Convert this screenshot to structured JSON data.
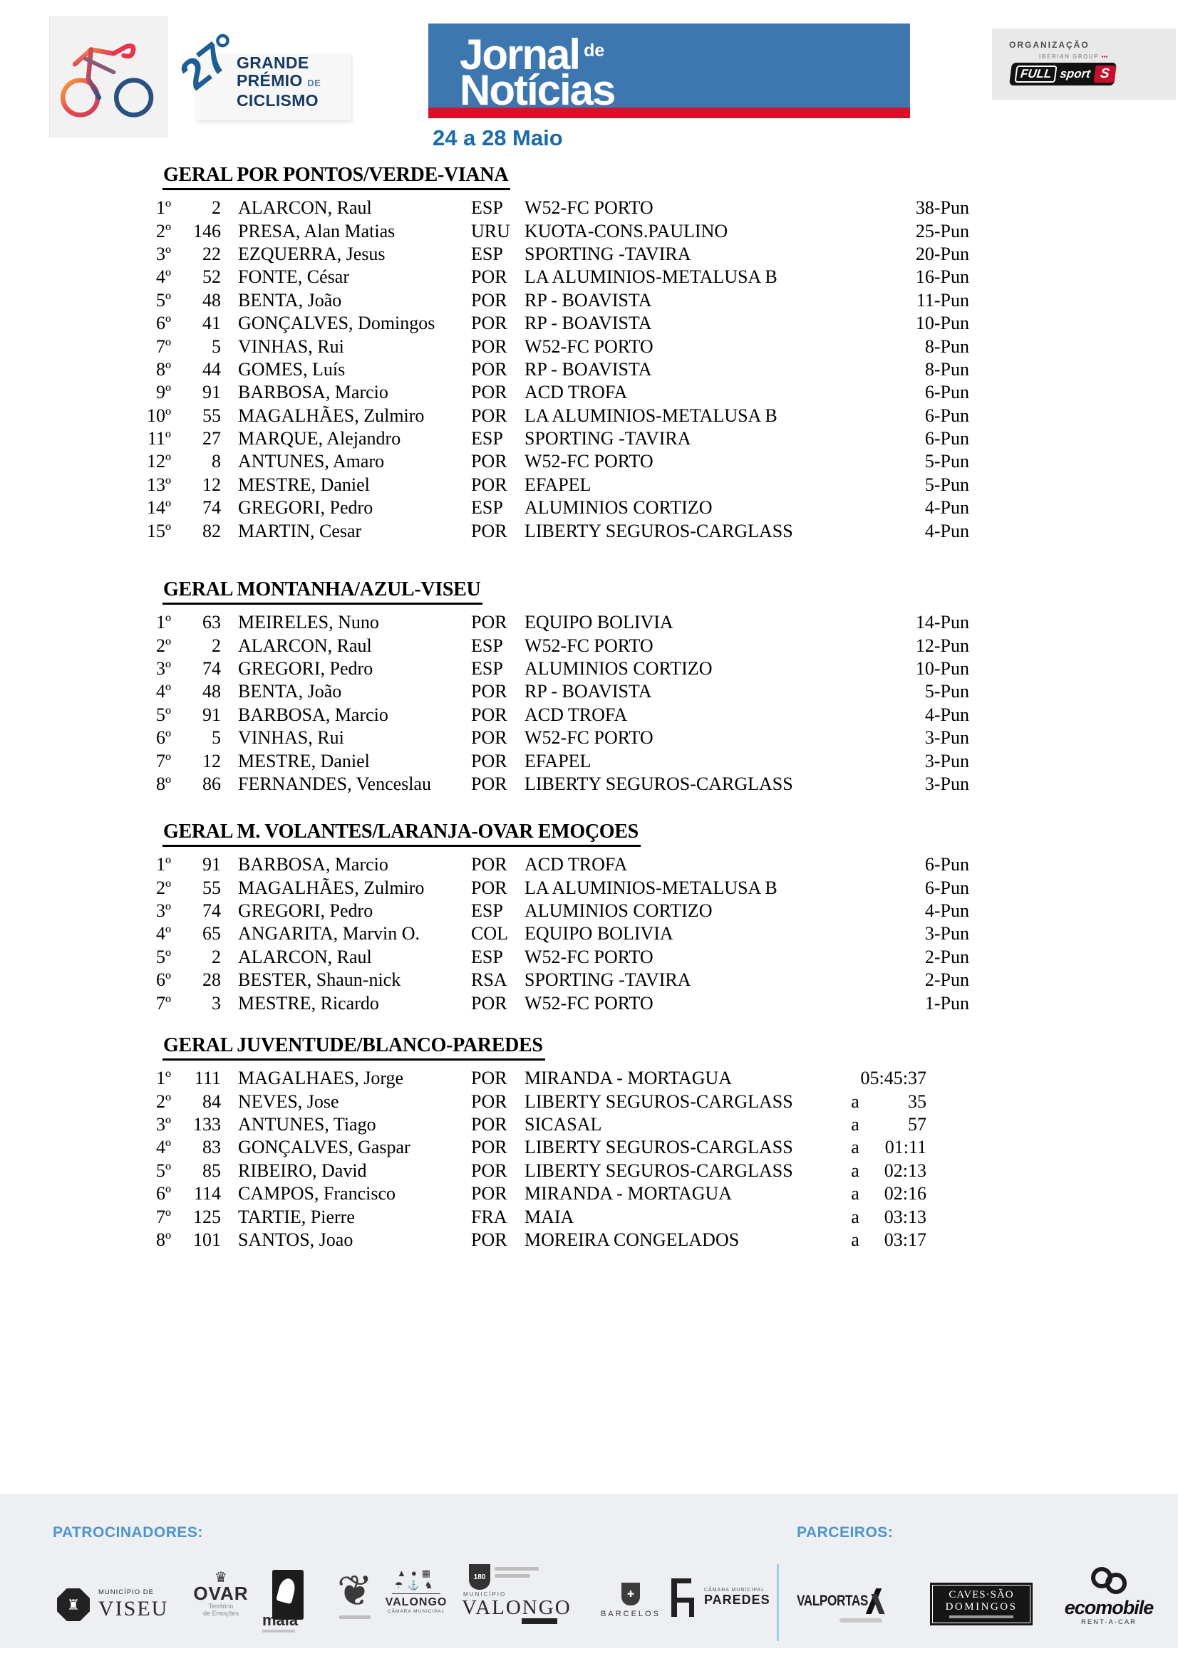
{
  "header": {
    "edition": {
      "number": "27°",
      "l1": "GRANDE",
      "l2": "PRÉMIO",
      "l2b": "DE",
      "l3": "CICLISMO"
    },
    "newspaper": {
      "w1": "Jornal",
      "de": "de",
      "w2": "Notícias"
    },
    "dates": "24 a 28 Maio",
    "organization": {
      "label": "ORGANIZAÇÃO",
      "group": "IBERIAN GROUP",
      "marks": "▪▪▪",
      "full": "FULL",
      "sport": "sport",
      "s": "S"
    }
  },
  "colors": {
    "newspaper_blue": "#3e77af",
    "newspaper_red": "#d8112b",
    "date_blue": "#1a6ba8",
    "edition_blue": "#1d5e95",
    "edition_navy": "#173a63",
    "footer_label_blue": "#4e95cc",
    "fullsport_red": "#c8102e"
  },
  "sections": [
    {
      "title": "GERAL POR PONTOS/VERDE-VIANA",
      "layout": "points",
      "rows": [
        [
          "1º",
          "2",
          "ALARCON, Raul",
          "ESP",
          "W52-FC PORTO",
          "38-Pun"
        ],
        [
          "2º",
          "146",
          "PRESA, Alan Matias",
          "URU",
          "KUOTA-CONS.PAULINO",
          "25-Pun"
        ],
        [
          "3º",
          "22",
          "EZQUERRA, Jesus",
          "ESP",
          "SPORTING -TAVIRA",
          "20-Pun"
        ],
        [
          "4º",
          "52",
          "FONTE, César",
          "POR",
          "LA ALUMINIOS-METALUSA B",
          "16-Pun"
        ],
        [
          "5º",
          "48",
          "BENTA, João",
          "POR",
          "RP - BOAVISTA",
          "11-Pun"
        ],
        [
          "6º",
          "41",
          "GONÇALVES, Domingos",
          "POR",
          "RP - BOAVISTA",
          "10-Pun"
        ],
        [
          "7º",
          "5",
          "VINHAS, Rui",
          "POR",
          "W52-FC PORTO",
          "8-Pun"
        ],
        [
          "8º",
          "44",
          "GOMES, Luís",
          "POR",
          "RP - BOAVISTA",
          "8-Pun"
        ],
        [
          "9º",
          "91",
          "BARBOSA, Marcio",
          "POR",
          "ACD TROFA",
          "6-Pun"
        ],
        [
          "10º",
          "55",
          "MAGALHÃES, Zulmiro",
          "POR",
          "LA ALUMINIOS-METALUSA B",
          "6-Pun"
        ],
        [
          "11º",
          "27",
          "MARQUE, Alejandro",
          "ESP",
          "SPORTING -TAVIRA",
          "6-Pun"
        ],
        [
          "12º",
          "8",
          "ANTUNES, Amaro",
          "POR",
          "W52-FC PORTO",
          "5-Pun"
        ],
        [
          "13º",
          "12",
          "MESTRE, Daniel",
          "POR",
          "EFAPEL",
          "5-Pun"
        ],
        [
          "14º",
          "74",
          "GREGORI, Pedro",
          "ESP",
          "ALUMINIOS CORTIZO",
          "4-Pun"
        ],
        [
          "15º",
          "82",
          "MARTIN, Cesar",
          "POR",
          "LIBERTY SEGUROS-CARGLASS",
          "4-Pun"
        ]
      ]
    },
    {
      "title": "GERAL MONTANHA/AZUL-VISEU",
      "layout": "points",
      "rows": [
        [
          "1º",
          "63",
          "MEIRELES, Nuno",
          "POR",
          "EQUIPO BOLIVIA",
          "14-Pun"
        ],
        [
          "2º",
          "2",
          "ALARCON, Raul",
          "ESP",
          "W52-FC PORTO",
          "12-Pun"
        ],
        [
          "3º",
          "74",
          "GREGORI, Pedro",
          "ESP",
          "ALUMINIOS CORTIZO",
          "10-Pun"
        ],
        [
          "4º",
          "48",
          "BENTA, João",
          "POR",
          "RP - BOAVISTA",
          "5-Pun"
        ],
        [
          "5º",
          "91",
          "BARBOSA, Marcio",
          "POR",
          "ACD TROFA",
          "4-Pun"
        ],
        [
          "6º",
          "5",
          "VINHAS, Rui",
          "POR",
          "W52-FC PORTO",
          "3-Pun"
        ],
        [
          "7º",
          "12",
          "MESTRE, Daniel",
          "POR",
          "EFAPEL",
          "3-Pun"
        ],
        [
          "8º",
          "86",
          "FERNANDES, Venceslau",
          "POR",
          "LIBERTY SEGUROS-CARGLASS",
          "3-Pun"
        ]
      ]
    },
    {
      "title": "GERAL M. VOLANTES/LARANJA-OVAR EMOÇOES",
      "layout": "points",
      "rows": [
        [
          "1º",
          "91",
          "BARBOSA, Marcio",
          "POR",
          "ACD TROFA",
          "6-Pun"
        ],
        [
          "2º",
          "55",
          "MAGALHÃES, Zulmiro",
          "POR",
          "LA ALUMINIOS-METALUSA B",
          "6-Pun"
        ],
        [
          "3º",
          "74",
          "GREGORI, Pedro",
          "ESP",
          "ALUMINIOS CORTIZO",
          "4-Pun"
        ],
        [
          "4º",
          "65",
          "ANGARITA, Marvin O.",
          "COL",
          "EQUIPO BOLIVIA",
          "3-Pun"
        ],
        [
          "5º",
          "2",
          "ALARCON, Raul",
          "ESP",
          "W52-FC PORTO",
          "2-Pun"
        ],
        [
          "6º",
          "28",
          "BESTER, Shaun-nick",
          "RSA",
          "SPORTING -TAVIRA",
          "2-Pun"
        ],
        [
          "7º",
          "3",
          "MESTRE, Ricardo",
          "POR",
          "W52-FC PORTO",
          "1-Pun"
        ]
      ]
    },
    {
      "title": "GERAL JUVENTUDE/BLANCO-PAREDES",
      "layout": "time",
      "rows": [
        [
          "1º",
          "111",
          "MAGALHAES, Jorge",
          "POR",
          "MIRANDA - MORTAGUA",
          "",
          "05:45:37"
        ],
        [
          "2º",
          "84",
          "NEVES, Jose",
          "POR",
          "LIBERTY SEGUROS-CARGLASS",
          "a",
          "35"
        ],
        [
          "3º",
          "133",
          "ANTUNES, Tiago",
          "POR",
          "SICASAL",
          "a",
          "57"
        ],
        [
          "4º",
          "83",
          "GONÇALVES, Gaspar",
          "POR",
          "LIBERTY SEGUROS-CARGLASS",
          "a",
          "01:11"
        ],
        [
          "5º",
          "85",
          "RIBEIRO, David",
          "POR",
          "LIBERTY SEGUROS-CARGLASS",
          "a",
          "02:13"
        ],
        [
          "6º",
          "114",
          "CAMPOS, Francisco",
          "POR",
          "MIRANDA - MORTAGUA",
          "a",
          "02:16"
        ],
        [
          "7º",
          "125",
          "TARTIE, Pierre",
          "FRA",
          "MAIA",
          "a",
          "03:13"
        ],
        [
          "8º",
          "101",
          "SANTOS, Joao",
          "POR",
          "MOREIRA CONGELADOS",
          "a",
          "03:17"
        ]
      ]
    }
  ],
  "footer": {
    "sponsors_label": "PATROCINADORES:",
    "partners_label": "PARCEIROS:",
    "viseu": {
      "small": "MUNICÍPIO DE",
      "big": "VISEU",
      "crest": "♜"
    },
    "ovar": {
      "crown": "♛",
      "big": "OVAR",
      "tag1": "Território",
      "tag2": "de Emoções"
    },
    "maia": {
      "big": "maia"
    },
    "valongo_cm": {
      "icons1": "▲●▦",
      "icons2": "☂⚓♞",
      "big": "VALONGO",
      "small": "CÂMARA MUNICIPAL"
    },
    "valongo_180": {
      "shield": "180",
      "small": "MUNICÍPIO",
      "big": "VALONGO"
    },
    "barcelos": {
      "crest": "✚",
      "big": "BARCELOS"
    },
    "paredes": {
      "small": "CÂMARA MUNICIPAL",
      "big": "PAREDES"
    },
    "valportas": {
      "big": "VALPORTAS"
    },
    "caves": {
      "line1": "CAVES·SÃO",
      "line2": "DOMINGOS"
    },
    "ecomobile": {
      "big": "ecomobile",
      "small": "RENT-A-CAR"
    },
    "heartcrest": {
      "glyph": "❦"
    }
  }
}
